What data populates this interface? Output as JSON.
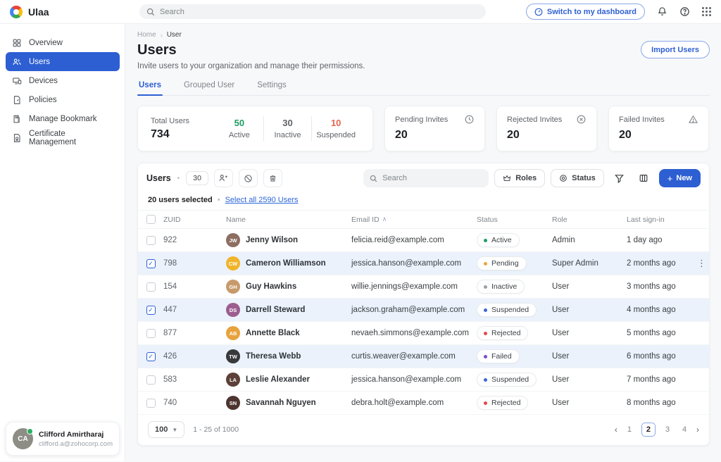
{
  "topbar": {
    "brand": "Ulaa",
    "search_placeholder": "Search",
    "switch_button": "Switch to my dashboard"
  },
  "sidebar": {
    "items": [
      {
        "label": "Overview",
        "icon": "grid-icon",
        "active": false
      },
      {
        "label": "Users",
        "icon": "users-icon",
        "active": true
      },
      {
        "label": "Devices",
        "icon": "devices-icon",
        "active": false
      },
      {
        "label": "Policies",
        "icon": "policies-icon",
        "active": false
      },
      {
        "label": "Manage Bookmark",
        "icon": "bookmark-icon",
        "active": false
      },
      {
        "label": "Certificate Management",
        "icon": "certificate-icon",
        "active": false
      }
    ],
    "profile": {
      "name": "Clifford Amirtharaj",
      "email": "clifford.a@zohocorp.com",
      "initials": "CA"
    }
  },
  "page": {
    "breadcrumb": {
      "home": "Home",
      "current": "User"
    },
    "title": "Users",
    "subtitle": "Invite users to your organization and manage their permissions.",
    "import_button": "Import Users",
    "tabs": [
      {
        "label": "Users",
        "active": true
      },
      {
        "label": "Grouped User",
        "active": false
      },
      {
        "label": "Settings",
        "active": false
      }
    ]
  },
  "stats": {
    "total_card": {
      "label": "Total Users",
      "value": "734",
      "segments": [
        {
          "value": "50",
          "label": "Active",
          "color": "#1e9e63"
        },
        {
          "value": "30",
          "label": "Inactive",
          "color": "#5f6368"
        },
        {
          "value": "10",
          "label": "Suspended",
          "color": "#e5654f"
        }
      ]
    },
    "cards": [
      {
        "label": "Pending Invites",
        "value": "20",
        "icon": "clock-icon"
      },
      {
        "label": "Rejected Invites",
        "value": "20",
        "icon": "x-circle-icon"
      },
      {
        "label": "Failed Invites",
        "value": "20",
        "icon": "warning-icon"
      }
    ]
  },
  "table": {
    "toolbar": {
      "title": "Users",
      "count_badge": "30",
      "search_placeholder": "Search",
      "roles_button": "Roles",
      "status_button": "Status",
      "new_button": "New"
    },
    "selection": {
      "selected_text": "20 users selected",
      "select_all_link": "Select all 2590 Users"
    },
    "columns": {
      "zuid": "ZUID",
      "name": "Name",
      "email": "Email ID",
      "status": "Status",
      "role": "Role",
      "last_signin": "Last sign-in"
    },
    "status_colors": {
      "Active": "#1e9e63",
      "Pending": "#eaa63a",
      "Inactive": "#9aa0a6",
      "Suspended": "#3f66d4",
      "Rejected": "#e5484d",
      "Failed": "#7c4dcc"
    },
    "rows": [
      {
        "zuid": "922",
        "name": "Jenny Wilson",
        "initials": "JW",
        "avatar_color": "#8d6e63",
        "email": "felicia.reid@example.com",
        "status": "Active",
        "role": "Admin",
        "last_signin": "1 day ago",
        "selected": false,
        "has_menu": false
      },
      {
        "zuid": "798",
        "name": "Cameron Williamson",
        "initials": "CW",
        "avatar_color": "#f0b429",
        "email": "jessica.hanson@example.com",
        "status": "Pending",
        "role": "Super Admin",
        "last_signin": "2 months ago",
        "selected": true,
        "has_menu": true
      },
      {
        "zuid": "154",
        "name": "Guy Hawkins",
        "initials": "GH",
        "avatar_color": "#c79a6b",
        "email": "willie.jennings@example.com",
        "status": "Inactive",
        "role": "User",
        "last_signin": "3 months ago",
        "selected": false,
        "has_menu": false
      },
      {
        "zuid": "447",
        "name": "Darrell Steward",
        "initials": "DS",
        "avatar_color": "#9c5d8f",
        "email": "jackson.graham@example.com",
        "status": "Suspended",
        "role": "User",
        "last_signin": "4 months ago",
        "selected": true,
        "has_menu": false
      },
      {
        "zuid": "877",
        "name": "Annette Black",
        "initials": "AB",
        "avatar_color": "#e8a23d",
        "email": "nevaeh.simmons@example.com",
        "status": "Rejected",
        "role": "User",
        "last_signin": "5 months ago",
        "selected": false,
        "has_menu": false
      },
      {
        "zuid": "426",
        "name": "Theresa Webb",
        "initials": "TW",
        "avatar_color": "#37393b",
        "email": "curtis.weaver@example.com",
        "status": "Failed",
        "role": "User",
        "last_signin": "6 months ago",
        "selected": true,
        "has_menu": false
      },
      {
        "zuid": "583",
        "name": "Leslie Alexander",
        "initials": "LA",
        "avatar_color": "#5d4037",
        "email": "jessica.hanson@example.com",
        "status": "Suspended",
        "role": "User",
        "last_signin": "7 months ago",
        "selected": false,
        "has_menu": false
      },
      {
        "zuid": "740",
        "name": "Savannah Nguyen",
        "initials": "SN",
        "avatar_color": "#4e342e",
        "email": "debra.holt@example.com",
        "status": "Rejected",
        "role": "User",
        "last_signin": "8 months ago",
        "selected": false,
        "has_menu": false
      }
    ],
    "footer": {
      "page_size": "100",
      "range_text": "1 - 25 of 1000",
      "pages": [
        "1",
        "2",
        "3",
        "4"
      ],
      "current_page": "2"
    }
  }
}
